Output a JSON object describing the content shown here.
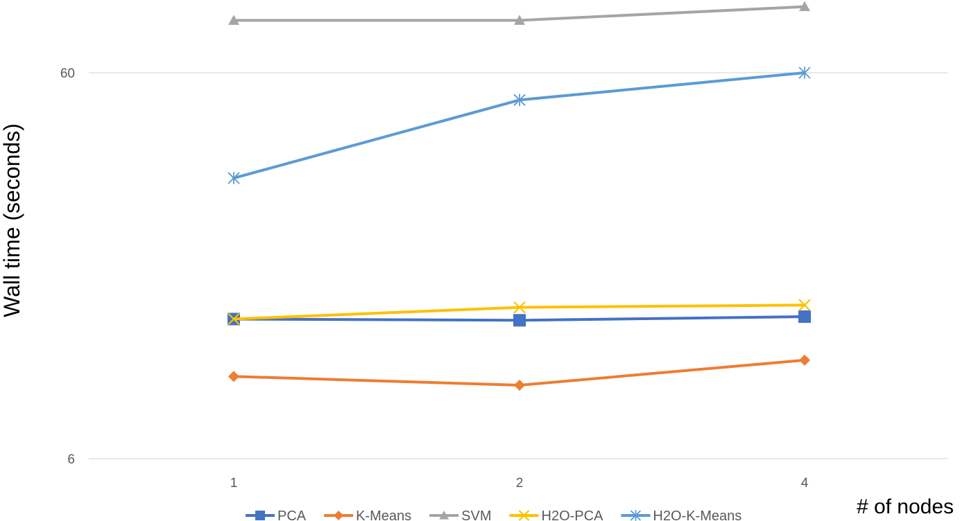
{
  "chart_data": {
    "type": "line",
    "categories": [
      "1",
      "2",
      "4"
    ],
    "xlabel": "# of nodes",
    "ylabel": "Wall time (seconds)",
    "yscale": "log",
    "ylim": [
      6,
      80
    ],
    "yticks": [
      6,
      60
    ],
    "ytick_labels": [
      "6",
      "60"
    ],
    "grid": true,
    "legend_position": "bottom",
    "series": [
      {
        "name": "PCA",
        "color": "#4472C4",
        "marker": "square",
        "values": [
          13.8,
          13.7,
          14.0
        ]
      },
      {
        "name": "K-Means",
        "color": "#ED7D31",
        "marker": "diamond",
        "values": [
          9.8,
          9.3,
          10.8
        ]
      },
      {
        "name": "SVM",
        "color": "#A5A5A5",
        "marker": "triangle",
        "values": [
          82,
          82,
          89
        ]
      },
      {
        "name": "H2O-PCA",
        "color": "#FFC000",
        "marker": "x",
        "values": [
          13.8,
          14.8,
          15.0
        ]
      },
      {
        "name": "H2O-K-Means",
        "color": "#5B9BD5",
        "marker": "asterisk",
        "values": [
          32,
          51,
          60
        ]
      }
    ]
  }
}
